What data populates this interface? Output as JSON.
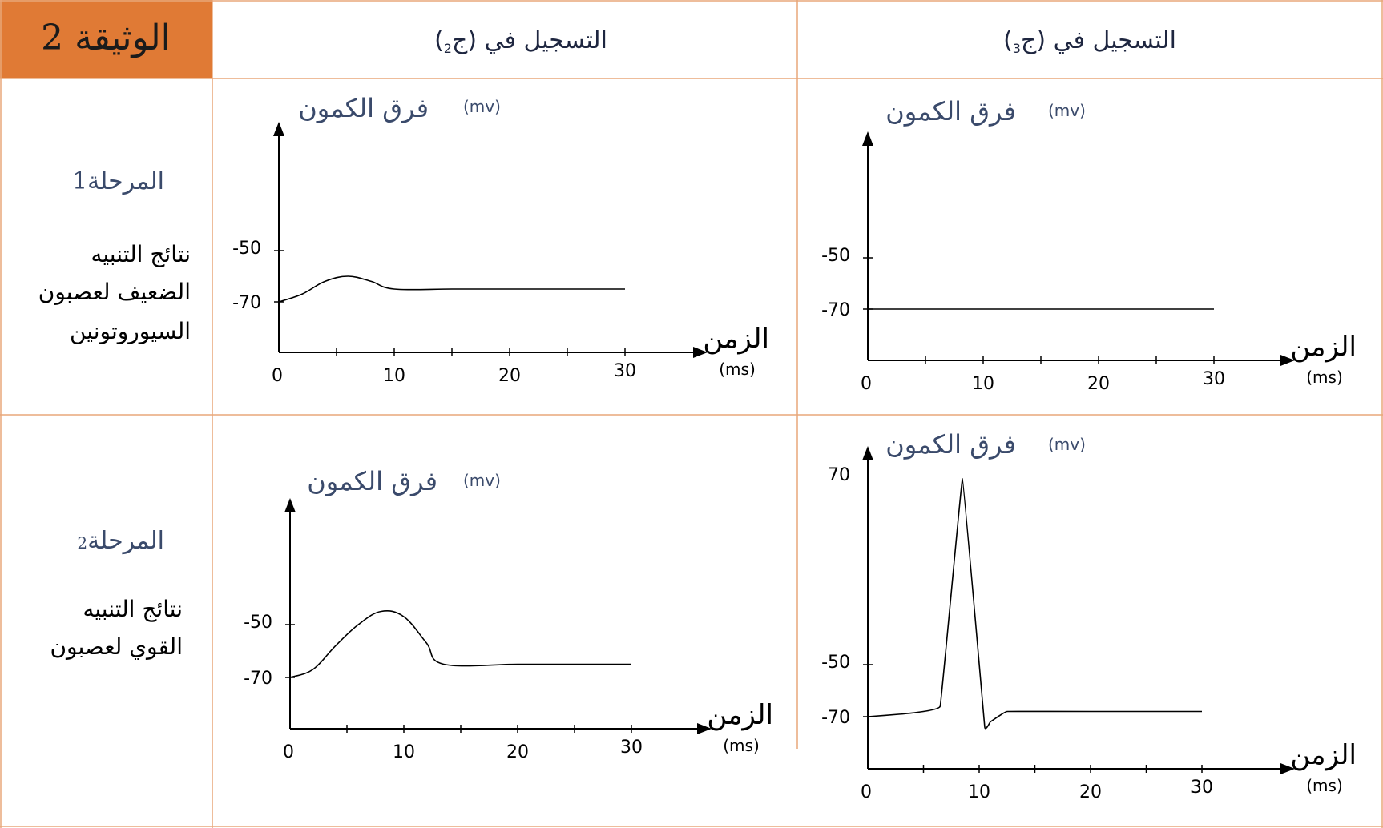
{
  "document": {
    "title": "الوثيقة 2",
    "header_color": "#E07A35",
    "border_color": "#E8A77A",
    "text_blue": "#3A4A6B"
  },
  "columns": [
    {
      "prefix": "التسجيل في ",
      "neuron": "(ج",
      "sub": "2",
      "suffix": ")"
    },
    {
      "prefix": "التسجيل في ",
      "neuron": "(ج",
      "sub": "3",
      "suffix": ")"
    }
  ],
  "rows": [
    {
      "phase": "المرحلة",
      "phase_num": "1",
      "desc": [
        "نتائج التنبيه",
        "الضعيف لعصبون",
        "السيوروتونين"
      ]
    },
    {
      "phase": "المرحلة",
      "phase_num": "2",
      "desc": [
        "نتائج التنبيه",
        "القوي لعصبون"
      ]
    }
  ],
  "chart_data": [
    {
      "id": "phase1-j2",
      "type": "line",
      "ylabel": "فرق الكمون",
      "yunit": "(mv)",
      "xlabel": "الزمن",
      "xunit": "(ms)",
      "xticks": [
        "0",
        "10",
        "20",
        "30"
      ],
      "yticks": [
        "-50",
        "-70"
      ],
      "series": [
        {
          "x": [
            0,
            2,
            4,
            6,
            8,
            10,
            15,
            20,
            25,
            30
          ],
          "y": [
            -70,
            -67,
            -62,
            -60,
            -62,
            -65,
            -65,
            -65,
            -65,
            -65
          ]
        }
      ]
    },
    {
      "id": "phase1-j3",
      "type": "line",
      "ylabel": "فرق الكمون",
      "yunit": "(mv)",
      "xlabel": "الزمن",
      "xunit": "(ms)",
      "xticks": [
        "0",
        "10",
        "20",
        "30"
      ],
      "yticks": [
        "-50",
        "-70"
      ],
      "series": [
        {
          "x": [
            0,
            30
          ],
          "y": [
            -70,
            -70
          ]
        }
      ]
    },
    {
      "id": "phase2-j2",
      "type": "line",
      "ylabel": "فرق الكمون",
      "yunit": "(mv)",
      "xlabel": "الزمن",
      "xunit": "(ms)",
      "xticks": [
        "0",
        "10",
        "20",
        "30"
      ],
      "yticks": [
        "-50",
        "-70"
      ],
      "series": [
        {
          "x": [
            0,
            2,
            4,
            6,
            8,
            10,
            12,
            13.5,
            20,
            25,
            30
          ],
          "y": [
            -70,
            -67,
            -58,
            -50,
            -45,
            -47,
            -57,
            -65,
            -65,
            -65,
            -65
          ]
        }
      ]
    },
    {
      "id": "phase2-j3",
      "type": "line",
      "ylabel": "فرق الكمون",
      "yunit": "(mv)",
      "xlabel": "الزمن",
      "xunit": "(ms)",
      "xticks": [
        "0",
        "10",
        "20",
        "30"
      ],
      "yticks": [
        "70",
        "-50",
        "-70"
      ],
      "series": [
        {
          "x": [
            0,
            3,
            6.5,
            8.5,
            10.5,
            11,
            12.5,
            20,
            25,
            30
          ],
          "y": [
            -70,
            -69,
            -66,
            70,
            -74,
            -72,
            -68,
            -68,
            -68,
            -68
          ]
        }
      ]
    }
  ]
}
